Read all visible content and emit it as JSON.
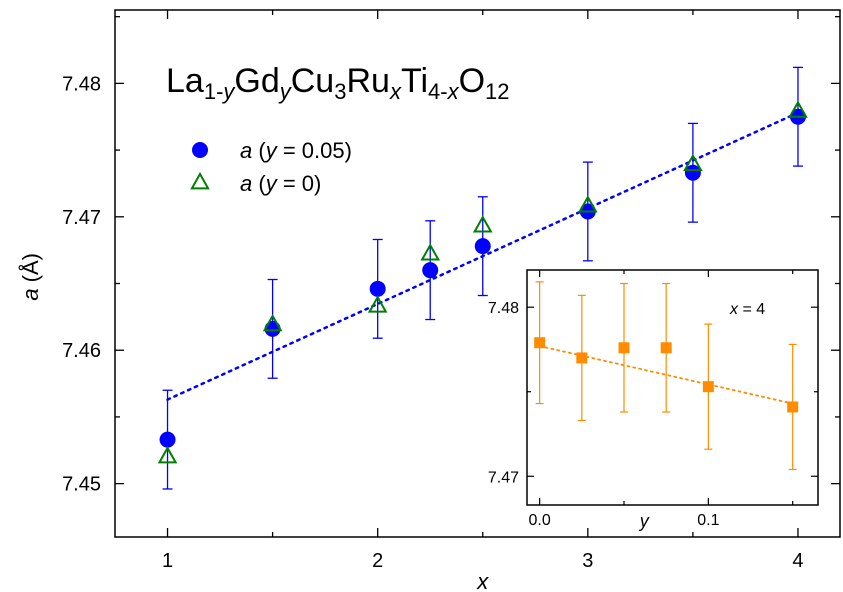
{
  "chart_data": [
    {
      "type": "scatter",
      "title": {
        "parts": [
          {
            "t": "La",
            "s": "n"
          },
          {
            "t": "1-",
            "s": "sub"
          },
          {
            "t": "y",
            "s": "subi"
          },
          {
            "t": "Gd",
            "s": "n"
          },
          {
            "t": "y",
            "s": "subi"
          },
          {
            "t": "Cu",
            "s": "n"
          },
          {
            "t": "3",
            "s": "sub"
          },
          {
            "t": "Ru",
            "s": "n"
          },
          {
            "t": "x",
            "s": "subi"
          },
          {
            "t": "Ti",
            "s": "n"
          },
          {
            "t": "4-",
            "s": "sub"
          },
          {
            "t": "x",
            "s": "subi"
          },
          {
            "t": "O",
            "s": "n"
          },
          {
            "t": "12",
            "s": "sub"
          }
        ]
      },
      "xlabel": "x",
      "ylabel": {
        "var": "a",
        "unit": " (Å)"
      },
      "xlim": [
        0.75,
        4.2
      ],
      "ylim": [
        7.446,
        7.4855
      ],
      "xticks": [
        1,
        2,
        3,
        4
      ],
      "yticks": [
        7.45,
        7.46,
        7.47,
        7.48
      ],
      "ytick_labels": [
        "7.45",
        "7.46",
        "7.47",
        "7.48"
      ],
      "legend_position": "upper-left",
      "series": [
        {
          "name": "a (y = 0.05)",
          "legend": {
            "var": "a",
            "mid": " (",
            "var2": "y",
            "rest": " = 0.05)"
          },
          "marker": "circle",
          "color": "#0000ff",
          "x": [
            1,
            1.5,
            2,
            2.25,
            2.5,
            3,
            3.5,
            4
          ],
          "y": [
            7.4533,
            7.4616,
            7.4646,
            7.466,
            7.4678,
            7.4704,
            7.4733,
            7.4775
          ],
          "err": [
            0.0037,
            0.0037,
            0.0037,
            0.0037,
            0.0037,
            0.0037,
            0.0037,
            0.0037
          ]
        },
        {
          "name": "a (y = 0)",
          "legend": {
            "var": "a",
            "mid": " (",
            "var2": "y",
            "rest": " = 0)"
          },
          "marker": "triangle",
          "color": "#008000",
          "x": [
            1,
            1.5,
            2,
            2.25,
            2.5,
            3,
            3.5,
            4
          ],
          "y": [
            7.452,
            7.4619,
            7.4633,
            7.4672,
            7.4693,
            7.4708,
            7.4739,
            7.4779
          ]
        },
        {
          "name": "linear fit",
          "line": "dotted",
          "color": "#0000ff",
          "x": [
            1,
            4
          ],
          "y": [
            7.4563,
            7.4778
          ]
        }
      ]
    },
    {
      "type": "scatter",
      "annotation": {
        "var": "x",
        "rest": " = 4"
      },
      "xlabel": "y",
      "xlim": [
        -0.0075,
        0.165
      ],
      "ylim": [
        7.4683,
        7.4822
      ],
      "xticks": [
        0.0,
        0.1
      ],
      "xtick_labels": [
        "0.0",
        "0.1"
      ],
      "yticks": [
        7.47,
        7.48
      ],
      "ytick_labels": [
        "7.47",
        "7.48"
      ],
      "series": [
        {
          "name": "x = 4",
          "marker": "square",
          "color": "#ff8c00",
          "x": [
            0.0,
            0.025,
            0.05,
            0.075,
            0.1,
            0.15
          ],
          "y": [
            7.4779,
            7.477,
            7.4776,
            7.4776,
            7.4753,
            7.4741
          ],
          "err": [
            0.0036,
            0.0037,
            0.0038,
            0.0038,
            0.0037,
            0.0037
          ]
        },
        {
          "name": "linear fit",
          "line": "dotted",
          "color": "#ff8c00",
          "x": [
            0.0,
            0.15
          ],
          "y": [
            7.4777,
            7.4743
          ]
        }
      ]
    }
  ]
}
